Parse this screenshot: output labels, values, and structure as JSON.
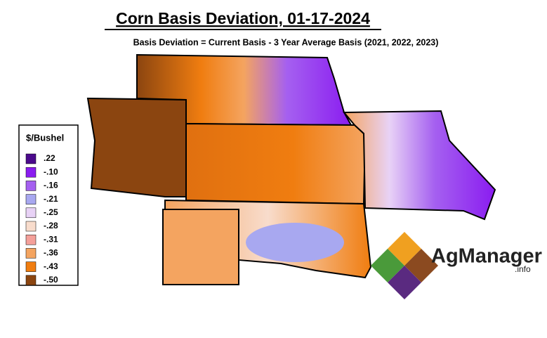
{
  "header": {
    "title": "Corn Basis Deviation, 01-17-2024",
    "subtitle": "Basis Deviation = Current Basis - 3 Year Average Basis (2021, 2022, 2023)"
  },
  "legend": {
    "title": "$/Bushel",
    "items": [
      {
        "label": ".22",
        "color": "#4b0a8c"
      },
      {
        "label": "-.10",
        "color": "#8a1cf0"
      },
      {
        "label": "-.16",
        "color": "#a560f0"
      },
      {
        "label": "-.21",
        "color": "#a8a8f0"
      },
      {
        "label": "-.25",
        "color": "#e8d2f6"
      },
      {
        "label": "-.28",
        "color": "#f8dccc"
      },
      {
        "label": "-.31",
        "color": "#f4a09a"
      },
      {
        "label": "-.36",
        "color": "#f4a460"
      },
      {
        "label": "-.43",
        "color": "#f07d10"
      },
      {
        "label": "-.50",
        "color": "#8b4510"
      }
    ]
  },
  "logo": {
    "name": "AgManager",
    "suffix": ".info"
  }
}
